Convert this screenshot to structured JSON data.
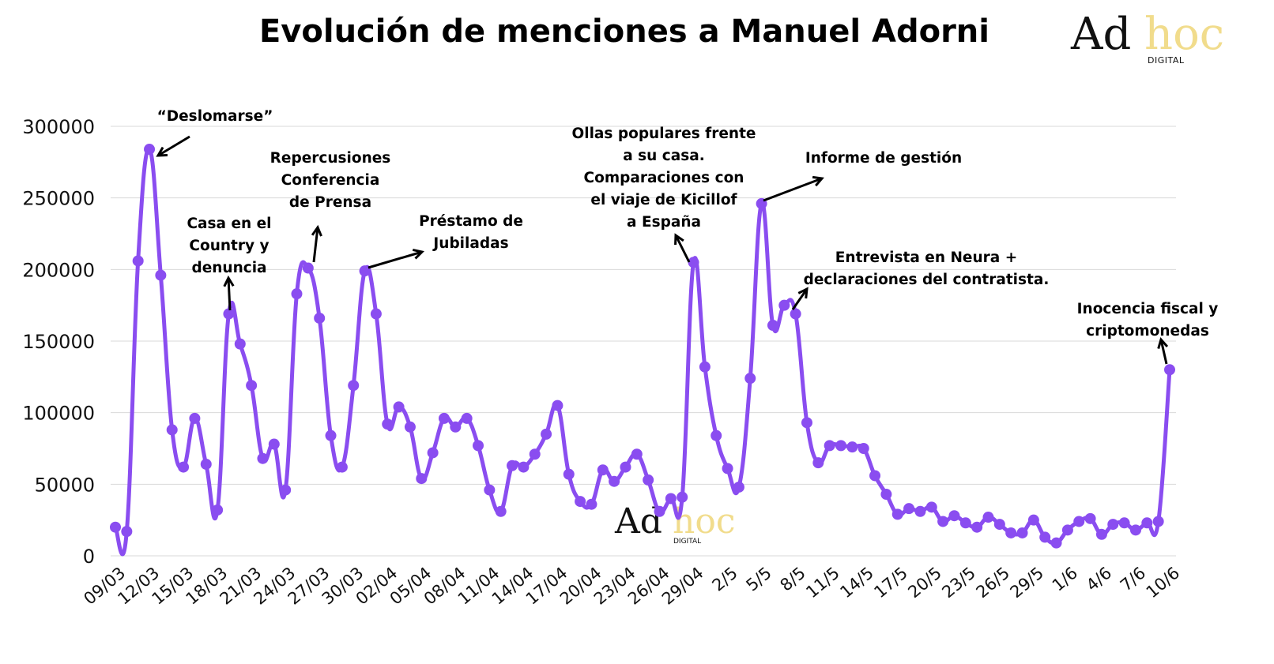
{
  "chart_data": {
    "type": "line",
    "title": "Evolución de menciones a Manuel Adorni",
    "xlabel": "",
    "ylabel": "",
    "ylim": [
      0,
      300000
    ],
    "yticks": [
      0,
      50000,
      100000,
      150000,
      200000,
      250000,
      300000
    ],
    "grid": true,
    "series_color": "#8a4df0",
    "x_tick_labels": [
      "09/03",
      "12/03",
      "15/03",
      "18/03",
      "21/03",
      "24/03",
      "27/03",
      "30/03",
      "02/04",
      "05/04",
      "08/04",
      "11/04",
      "14/04",
      "17/04",
      "20/04",
      "23/04",
      "26/04",
      "29/04",
      "2/5",
      "5/5",
      "8/5",
      "11/5",
      "14/5",
      "17/5",
      "20/5",
      "23/5",
      "26/5",
      "29/5",
      "1/6",
      "4/6",
      "7/6",
      "10/6"
    ],
    "values": [
      20000,
      17000,
      206000,
      284000,
      196000,
      88000,
      62000,
      96000,
      64000,
      32000,
      169000,
      148000,
      119000,
      68000,
      78000,
      46000,
      183000,
      201000,
      166000,
      84000,
      62000,
      119000,
      199000,
      169000,
      92000,
      104000,
      90000,
      54000,
      72000,
      96000,
      90000,
      96000,
      77000,
      46000,
      31000,
      63000,
      62000,
      71000,
      85000,
      105000,
      57000,
      38000,
      36000,
      60000,
      52000,
      62000,
      71000,
      53000,
      31000,
      40000,
      41000,
      205000,
      132000,
      84000,
      61000,
      48000,
      124000,
      246000,
      161000,
      175000,
      169000,
      93000,
      65000,
      77000,
      77000,
      76000,
      75000,
      56000,
      43000,
      29000,
      33000,
      31000,
      34000,
      24000,
      28000,
      23000,
      20000,
      27000,
      22000,
      16000,
      16000,
      25000,
      13000,
      9000,
      18000,
      24000,
      26000,
      15000,
      22000,
      23000,
      18000,
      23000,
      24000,
      130000
    ],
    "annotations": [
      {
        "lines": [
          "“Deslomarse”"
        ],
        "index": 3
      },
      {
        "lines": [
          "Casa en el",
          "Country y",
          "denuncia"
        ],
        "index": 10
      },
      {
        "lines": [
          "Repercusiones",
          "Conferencia",
          "de Prensa"
        ],
        "index": 17
      },
      {
        "lines": [
          "Préstamo de",
          "Jubiladas"
        ],
        "index": 22
      },
      {
        "lines": [
          "Ollas populares frente",
          "a su casa.",
          "Comparaciones con",
          "el viaje de Kicillof",
          "a España"
        ],
        "index": 51
      },
      {
        "lines": [
          "Informe de gestión"
        ],
        "index": 57
      },
      {
        "lines": [
          "Entrevista en Neura +",
          "declaraciones del contratista."
        ],
        "index": 60
      },
      {
        "lines": [
          "Inocencia fiscal y",
          "criptomonedas"
        ],
        "index": 93
      }
    ]
  },
  "logos": {
    "brand_ad": "Ad",
    "brand_hoc": "hoc",
    "brand_sub": "DIGITAL"
  }
}
